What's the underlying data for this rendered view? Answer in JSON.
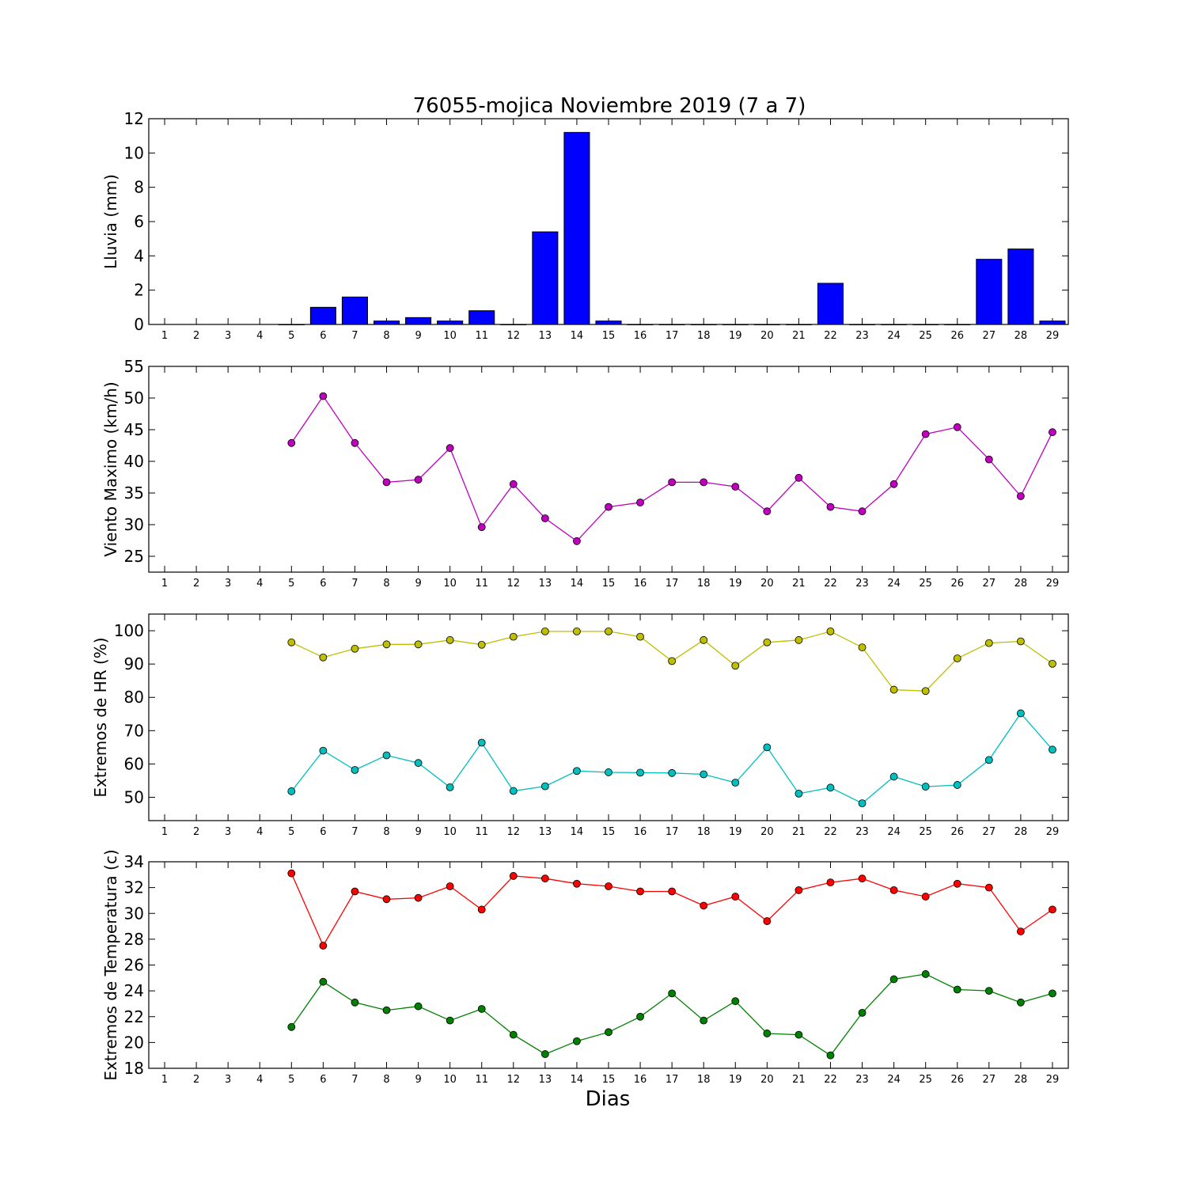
{
  "title": "76055-mojica Noviembre 2019  (7 a 7)",
  "xlabel": "Dias",
  "chart_data": [
    {
      "type": "bar",
      "ylabel": "Lluvia (mm)",
      "ylim": [
        0,
        12
      ],
      "yticks": [
        0,
        2,
        4,
        6,
        8,
        10,
        12
      ],
      "xticks": [
        1,
        2,
        3,
        4,
        5,
        6,
        7,
        8,
        9,
        10,
        11,
        12,
        13,
        14,
        15,
        16,
        17,
        18,
        19,
        20,
        21,
        22,
        23,
        24,
        25,
        26,
        27,
        28,
        29
      ],
      "colors": {
        "bar": "#0000ff"
      },
      "x": [
        5,
        6,
        7,
        8,
        9,
        10,
        11,
        12,
        13,
        14,
        15,
        16,
        17,
        18,
        19,
        20,
        21,
        22,
        23,
        24,
        25,
        26,
        27,
        28,
        29
      ],
      "values": [
        0,
        1.0,
        1.6,
        0.2,
        0.4,
        0.2,
        0.8,
        0,
        5.4,
        11.2,
        0.2,
        0,
        0,
        0,
        0,
        0,
        0,
        2.4,
        0,
        0,
        0,
        0,
        3.8,
        4.4,
        0.2
      ]
    },
    {
      "type": "line",
      "ylabel": "Viento Maximo (km/h)",
      "ylim": [
        22.5,
        55
      ],
      "yticks": [
        25,
        30,
        35,
        40,
        45,
        50,
        55
      ],
      "xticks": [
        1,
        2,
        3,
        4,
        5,
        6,
        7,
        8,
        9,
        10,
        11,
        12,
        13,
        14,
        15,
        16,
        17,
        18,
        19,
        20,
        21,
        22,
        23,
        24,
        25,
        26,
        27,
        28,
        29
      ],
      "series": [
        {
          "color": "#bf00bf",
          "x": [
            5,
            6,
            7,
            8,
            9,
            10,
            11,
            12,
            13,
            14,
            15,
            16,
            17,
            18,
            19,
            20,
            21,
            22,
            23,
            24,
            25,
            26,
            27,
            28,
            29
          ],
          "values": [
            42.9,
            50.3,
            42.9,
            36.7,
            37.1,
            42.1,
            29.6,
            36.4,
            31.0,
            27.4,
            32.8,
            33.5,
            36.7,
            36.7,
            36.0,
            32.1,
            37.4,
            32.8,
            32.1,
            36.4,
            44.3,
            45.4,
            40.3,
            34.5,
            44.6
          ]
        }
      ]
    },
    {
      "type": "line",
      "ylabel": "Extremos de HR (%)",
      "ylim": [
        43,
        105
      ],
      "yticks": [
        50,
        60,
        70,
        80,
        90,
        100
      ],
      "xticks": [
        1,
        2,
        3,
        4,
        5,
        6,
        7,
        8,
        9,
        10,
        11,
        12,
        13,
        14,
        15,
        16,
        17,
        18,
        19,
        20,
        21,
        22,
        23,
        24,
        25,
        26,
        27,
        28,
        29
      ],
      "series": [
        {
          "color": "#bfbf00",
          "x": [
            5,
            6,
            7,
            8,
            9,
            10,
            11,
            12,
            13,
            14,
            15,
            16,
            17,
            18,
            19,
            20,
            21,
            22,
            23,
            24,
            25,
            26,
            27,
            28,
            29
          ],
          "values": [
            96.5,
            92.0,
            94.6,
            95.9,
            95.9,
            97.2,
            95.8,
            98.2,
            99.8,
            99.8,
            99.8,
            98.2,
            90.9,
            97.2,
            89.5,
            96.5,
            97.2,
            99.8,
            95.0,
            82.3,
            81.9,
            91.7,
            96.3,
            96.8,
            90.1
          ]
        },
        {
          "color": "#00bfbf",
          "x": [
            5,
            6,
            7,
            8,
            9,
            10,
            11,
            12,
            13,
            14,
            15,
            16,
            17,
            18,
            19,
            20,
            21,
            22,
            23,
            24,
            25,
            26,
            27,
            28,
            29
          ],
          "values": [
            51.8,
            64.0,
            58.2,
            62.6,
            60.3,
            53.0,
            66.4,
            51.9,
            53.3,
            57.9,
            57.5,
            57.4,
            57.3,
            56.9,
            54.4,
            65.0,
            51.1,
            52.9,
            48.2,
            56.2,
            53.2,
            53.7,
            61.2,
            75.2,
            64.3
          ]
        }
      ]
    },
    {
      "type": "line",
      "ylabel": "Extremos de Temperatura (c)",
      "ylim": [
        18,
        34
      ],
      "yticks": [
        18,
        20,
        22,
        24,
        26,
        28,
        30,
        32,
        34
      ],
      "xticks": [
        1,
        2,
        3,
        4,
        5,
        6,
        7,
        8,
        9,
        10,
        11,
        12,
        13,
        14,
        15,
        16,
        17,
        18,
        19,
        20,
        21,
        22,
        23,
        24,
        25,
        26,
        27,
        28,
        29
      ],
      "series": [
        {
          "color": "#ff0000",
          "x": [
            5,
            6,
            7,
            8,
            9,
            10,
            11,
            12,
            13,
            14,
            15,
            16,
            17,
            18,
            19,
            20,
            21,
            22,
            23,
            24,
            25,
            26,
            27,
            28,
            29
          ],
          "values": [
            33.1,
            27.5,
            31.7,
            31.1,
            31.2,
            32.1,
            30.3,
            32.9,
            32.7,
            32.3,
            32.1,
            31.7,
            31.7,
            30.6,
            31.3,
            29.4,
            31.8,
            32.4,
            32.7,
            31.8,
            31.3,
            32.3,
            32.0,
            28.6,
            30.3
          ]
        },
        {
          "color": "#008000",
          "x": [
            5,
            6,
            7,
            8,
            9,
            10,
            11,
            12,
            13,
            14,
            15,
            16,
            17,
            18,
            19,
            20,
            21,
            22,
            23,
            24,
            25,
            26,
            27,
            28,
            29
          ],
          "values": [
            21.2,
            24.7,
            23.1,
            22.5,
            22.8,
            21.7,
            22.6,
            20.6,
            19.1,
            20.1,
            20.8,
            22.0,
            23.8,
            21.7,
            23.2,
            20.7,
            20.6,
            19.0,
            22.3,
            24.9,
            25.3,
            24.1,
            24.0,
            23.1,
            23.8
          ]
        }
      ]
    }
  ]
}
